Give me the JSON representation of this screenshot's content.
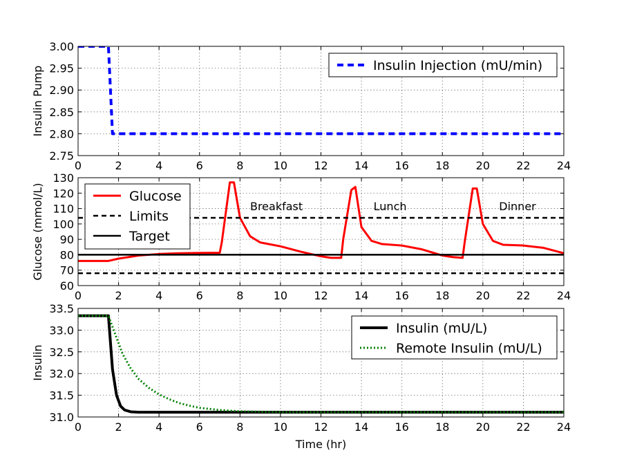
{
  "chart_data": [
    {
      "type": "line",
      "title": "",
      "xlabel": "",
      "ylabel": "Insulin Pump",
      "xlim": [
        0,
        24
      ],
      "ylim": [
        2.75,
        3.0
      ],
      "xticks": [
        "0",
        "2",
        "4",
        "6",
        "8",
        "10",
        "12",
        "14",
        "16",
        "18",
        "20",
        "22",
        "24"
      ],
      "yticks": [
        "2.75",
        "2.80",
        "2.85",
        "2.90",
        "2.95",
        "3.00"
      ],
      "grid": true,
      "legend_position": "top-right",
      "series": [
        {
          "name": "Insulin Injection (mU/min)",
          "color": "#0000ff",
          "style": "dashed",
          "x": [
            0,
            1.5,
            1.7,
            24
          ],
          "y": [
            3.0,
            3.0,
            2.8,
            2.8
          ]
        }
      ]
    },
    {
      "type": "line",
      "title": "",
      "xlabel": "",
      "ylabel": "Glucose (mmol/L)",
      "xlim": [
        0,
        24
      ],
      "ylim": [
        60,
        130
      ],
      "xticks": [
        "0",
        "2",
        "4",
        "6",
        "8",
        "10",
        "12",
        "14",
        "16",
        "18",
        "20",
        "22",
        "24"
      ],
      "yticks": [
        "60",
        "70",
        "80",
        "90",
        "100",
        "110",
        "120",
        "130"
      ],
      "grid": true,
      "legend_position": "top-left",
      "annotations": [
        {
          "text": "Breakfast",
          "x": 8.5,
          "y": 109
        },
        {
          "text": "Lunch",
          "x": 14.6,
          "y": 109
        },
        {
          "text": "Dinner",
          "x": 20.8,
          "y": 109
        }
      ],
      "series": [
        {
          "name": "Glucose",
          "color": "#ff0000",
          "style": "solid",
          "x": [
            0,
            1,
            1.5,
            2,
            3,
            4,
            5,
            6,
            7,
            7.1,
            7.5,
            7.7,
            8,
            8.5,
            9,
            10,
            11,
            12,
            12.5,
            13,
            13.1,
            13.5,
            13.7,
            14,
            14.5,
            15,
            16,
            17,
            18,
            18.5,
            19,
            19.1,
            19.5,
            19.7,
            20,
            20.5,
            21,
            22,
            23,
            24
          ],
          "y": [
            76,
            76,
            76,
            77.5,
            79.5,
            80.5,
            81,
            81.2,
            81.3,
            88,
            127,
            127,
            104,
            92,
            88,
            85.5,
            82,
            79,
            78,
            78,
            90,
            122,
            124,
            98,
            89,
            87,
            86,
            83.5,
            79.5,
            78.5,
            78,
            88,
            123,
            123,
            100,
            89,
            86.5,
            86,
            84.5,
            81
          ]
        },
        {
          "name": "Limits",
          "color": "#000000",
          "style": "dashed",
          "x": [
            0,
            24
          ],
          "y": [
            104,
            104
          ]
        },
        {
          "name": "",
          "color": "#000000",
          "style": "dashed",
          "x": [
            0,
            24
          ],
          "y": [
            68,
            68
          ]
        },
        {
          "name": "Target",
          "color": "#000000",
          "style": "solid",
          "x": [
            0,
            24
          ],
          "y": [
            80,
            80
          ]
        }
      ]
    },
    {
      "type": "line",
      "title": "",
      "xlabel": "Time (hr)",
      "ylabel": "Insulin",
      "xlim": [
        0,
        24
      ],
      "ylim": [
        31.0,
        33.5
      ],
      "xticks": [
        "0",
        "2",
        "4",
        "6",
        "8",
        "10",
        "12",
        "14",
        "16",
        "18",
        "20",
        "22",
        "24"
      ],
      "yticks": [
        "31.0",
        "31.5",
        "32.0",
        "32.5",
        "33.0",
        "33.5"
      ],
      "grid": true,
      "legend_position": "top-right",
      "series": [
        {
          "name": "Insulin (mU/L)",
          "color": "#000000",
          "style": "solid",
          "x": [
            0,
            1.5,
            1.7,
            1.9,
            2.1,
            2.3,
            2.6,
            3,
            4,
            24
          ],
          "y": [
            33.33,
            33.33,
            32.1,
            31.5,
            31.25,
            31.16,
            31.12,
            31.11,
            31.11,
            31.11
          ]
        },
        {
          "name": "Remote Insulin (mU/L)",
          "color": "#008000",
          "style": "dotted",
          "x": [
            0,
            1.5,
            1.8,
            2.2,
            2.6,
            3,
            3.5,
            4,
            4.5,
            5,
            5.5,
            6,
            7,
            8,
            9,
            10,
            24
          ],
          "y": [
            33.33,
            33.33,
            32.95,
            32.45,
            32.12,
            31.87,
            31.67,
            31.52,
            31.41,
            31.32,
            31.26,
            31.21,
            31.16,
            31.13,
            31.12,
            31.11,
            31.11
          ]
        }
      ]
    }
  ]
}
